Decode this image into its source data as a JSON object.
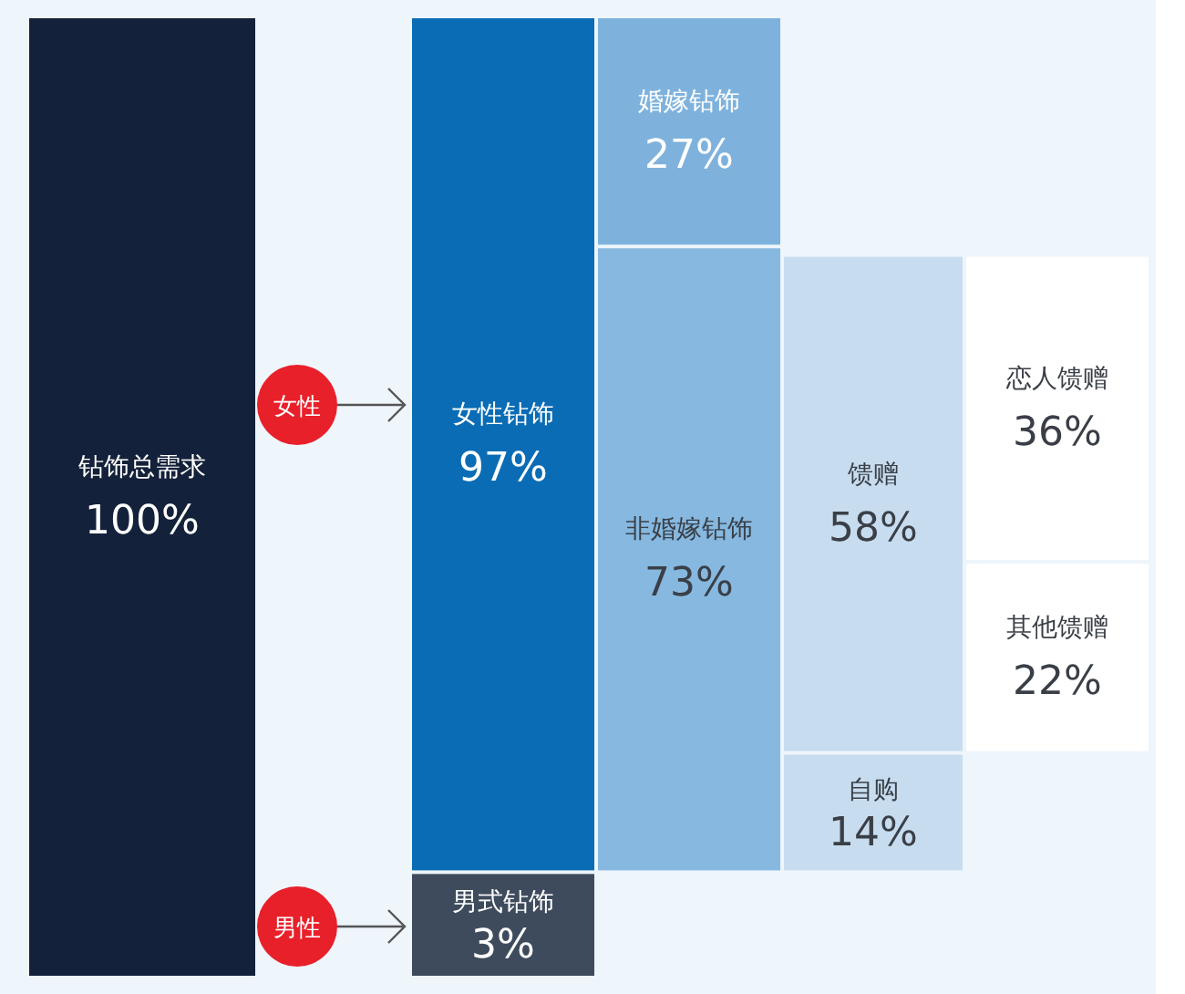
{
  "chart_data": {
    "type": "other",
    "categories": [
      "钻饰总需求",
      "女性钻饰",
      "男式钻饰",
      "婚嫁钻饰",
      "非婚嫁钻饰",
      "馈赠",
      "自购",
      "恋人馈赠",
      "其他馈赠"
    ],
    "values": [
      100,
      97,
      3,
      27,
      73,
      58,
      14,
      36,
      22
    ],
    "value_labels": [
      "100%",
      "97%",
      "3%",
      "27%",
      "73%",
      "58%",
      "14%",
      "36%",
      "22%"
    ],
    "colors": [
      "#14213a",
      "#0a6cb4",
      "#3e4b5d",
      "#7eb2dd",
      "#86b8e0",
      "#c7ddef",
      "#c7ddef",
      "#ffffff",
      "#ffffff"
    ],
    "annotations": [
      "女性",
      "男性"
    ]
  }
}
